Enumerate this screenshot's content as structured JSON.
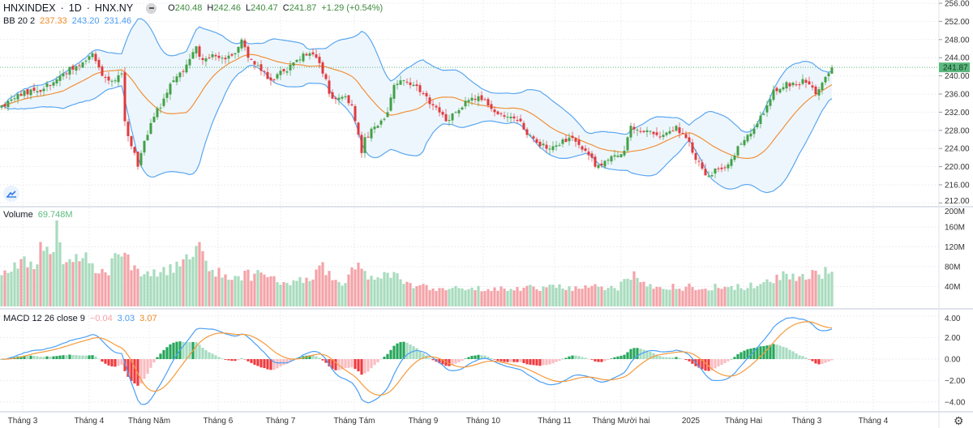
{
  "header": {
    "symbol": "HNXINDEX",
    "interval": "1D",
    "exchange": "HNX.NY",
    "separator": "·",
    "ohlc": {
      "o_label": "O",
      "o": "240.48",
      "h_label": "H",
      "h": "242.46",
      "l_label": "L",
      "l": "240.47",
      "c_label": "C",
      "c": "241.87",
      "change": "+1.29 (+0.54%)"
    }
  },
  "bb_legend": {
    "label": "BB 20 2",
    "basis": "237.33",
    "upper": "243.20",
    "lower": "231.46"
  },
  "volume_legend": {
    "label": "Volume",
    "value": "69.748M"
  },
  "macd_legend": {
    "label": "MACD 12 26 close 9",
    "histogram": "−0.04",
    "macd": "3.03",
    "signal": "3.07"
  },
  "colors": {
    "up": "#43a047",
    "down": "#e03a3e",
    "vol_up": "#a8dbbd",
    "vol_down": "#f4a3a8",
    "bb_band": "#5aa7f0",
    "bb_basis": "#f0913a",
    "bb_fill": "#eef6fd",
    "macd": "#4b9ff5",
    "signal": "#f59a3b",
    "last_price_tag": "#5cb87e"
  },
  "chart_data": [
    {
      "type": "candlestick",
      "title": "HNXINDEX",
      "yaxis_ticks": [
        "256.00",
        "252.00",
        "248.00",
        "244.00",
        "240.00",
        "236.00",
        "232.00",
        "228.00",
        "224.00",
        "220.00",
        "216.00",
        "212.00"
      ],
      "ylim": [
        212,
        256
      ],
      "last_price": "241.87",
      "last_bar": {
        "open": 240.48,
        "high": 242.46,
        "low": 240.47,
        "close": 241.87
      },
      "close_keypoints_by_bar": [
        [
          0,
          233.5
        ],
        [
          5,
          236
        ],
        [
          12,
          236.5
        ],
        [
          18,
          240
        ],
        [
          25,
          243
        ],
        [
          28,
          245
        ],
        [
          31,
          240
        ],
        [
          35,
          239
        ],
        [
          37,
          240.5
        ],
        [
          38,
          230
        ],
        [
          40,
          224.5
        ],
        [
          42,
          220
        ],
        [
          43,
          223
        ],
        [
          45,
          227
        ],
        [
          47,
          231
        ],
        [
          50,
          235
        ],
        [
          53,
          239
        ],
        [
          57,
          242.5
        ],
        [
          60,
          246.5
        ],
        [
          62,
          243.5
        ],
        [
          64,
          244
        ],
        [
          68,
          244
        ],
        [
          72,
          245
        ],
        [
          74,
          248
        ],
        [
          76,
          244
        ],
        [
          78,
          242.5
        ],
        [
          81,
          241
        ],
        [
          83,
          239
        ],
        [
          87,
          241
        ],
        [
          91,
          243.5
        ],
        [
          94,
          244.5
        ],
        [
          97,
          244
        ],
        [
          99,
          240.5
        ],
        [
          102,
          235
        ],
        [
          106,
          235.5
        ],
        [
          108,
          233.5
        ],
        [
          111,
          223
        ],
        [
          112,
          226.5
        ],
        [
          116,
          229
        ],
        [
          119,
          232
        ],
        [
          121,
          238
        ],
        [
          123,
          239
        ],
        [
          126,
          238
        ],
        [
          130,
          236
        ],
        [
          133,
          233.5
        ],
        [
          137,
          230
        ],
        [
          140,
          232
        ],
        [
          143,
          234.5
        ],
        [
          147,
          235.5
        ],
        [
          150,
          233.5
        ],
        [
          152,
          232
        ],
        [
          156,
          231
        ],
        [
          160,
          230
        ],
        [
          162,
          227
        ],
        [
          166,
          224.5
        ],
        [
          170,
          224.5
        ],
        [
          173,
          226
        ],
        [
          177,
          225.5
        ],
        [
          180,
          223.5
        ],
        [
          183,
          220
        ],
        [
          187,
          221.5
        ],
        [
          192,
          223.5
        ],
        [
          194,
          229
        ],
        [
          199,
          228
        ],
        [
          204,
          227
        ],
        [
          208,
          229
        ],
        [
          212,
          225.5
        ],
        [
          214,
          221.5
        ],
        [
          218,
          218
        ],
        [
          221,
          219.5
        ],
        [
          224,
          220.5
        ],
        [
          227,
          224.5
        ],
        [
          230,
          227
        ],
        [
          233,
          229.5
        ],
        [
          236,
          233.5
        ],
        [
          238,
          237
        ],
        [
          241,
          237.5
        ],
        [
          244,
          238.5
        ],
        [
          248,
          238.5
        ],
        [
          251,
          236
        ],
        [
          253,
          238.5
        ],
        [
          256,
          241.87
        ]
      ],
      "overlays": [
        "Bollinger Bands 20 2"
      ]
    },
    {
      "type": "bar",
      "title": "Volume",
      "yaxis_ticks": [
        "200M",
        "160M",
        "120M",
        "80M",
        "40M"
      ],
      "ylim_millions": [
        0,
        200
      ],
      "volume_keypoints_by_bar_millions": [
        [
          0,
          68
        ],
        [
          6,
          100
        ],
        [
          8,
          70
        ],
        [
          11,
          90
        ],
        [
          12,
          110
        ],
        [
          16,
          130
        ],
        [
          17,
          148
        ],
        [
          19,
          85
        ],
        [
          25,
          95
        ],
        [
          30,
          75
        ],
        [
          33,
          70
        ],
        [
          36,
          130
        ],
        [
          38,
          120
        ],
        [
          40,
          70
        ],
        [
          50,
          68
        ],
        [
          59,
          117
        ],
        [
          61,
          110
        ],
        [
          64,
          75
        ],
        [
          70,
          65
        ],
        [
          82,
          60
        ],
        [
          90,
          45
        ],
        [
          99,
          75
        ],
        [
          105,
          45
        ],
        [
          109,
          80
        ],
        [
          115,
          50
        ],
        [
          119,
          70
        ],
        [
          125,
          45
        ],
        [
          130,
          38
        ],
        [
          190,
          38
        ],
        [
          194,
          65
        ],
        [
          200,
          40
        ],
        [
          214,
          38
        ],
        [
          235,
          42
        ],
        [
          240,
          60
        ],
        [
          256,
          69.748
        ]
      ]
    },
    {
      "type": "line",
      "title": "MACD 12 26 close 9",
      "yaxis_ticks": [
        "4.00",
        "2.00",
        "0.00",
        "-2.00",
        "-4.00"
      ],
      "ylim": [
        -4,
        4
      ],
      "series": [
        {
          "name": "MACD"
        },
        {
          "name": "Signal"
        },
        {
          "name": "Histogram"
        }
      ]
    }
  ],
  "time_axis": {
    "labels": [
      "Tháng 3",
      "Tháng 4",
      "Tháng Năm",
      "Tháng 6",
      "Tháng 7",
      "Tháng Tám",
      "Tháng 9",
      "Tháng 10",
      "Tháng 11",
      "Tháng Mười hai",
      "2025",
      "Tháng Hai",
      "Tháng 3",
      "Tháng 4"
    ]
  },
  "icons": {
    "logo": "tradingview-cloud-icon",
    "settings": "gear-icon",
    "collapse": "minus-icon"
  }
}
